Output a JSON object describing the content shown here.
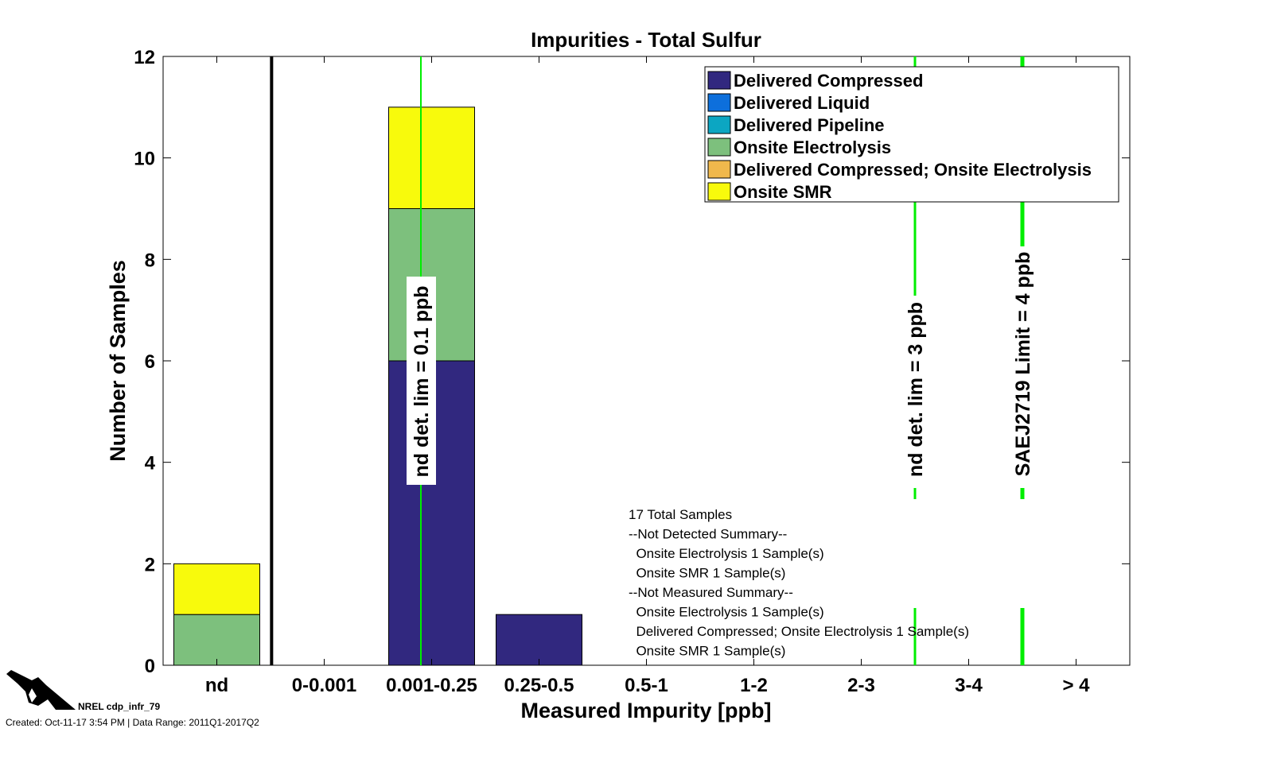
{
  "chart_data": {
    "type": "bar",
    "stacked": true,
    "title": "Impurities - Total Sulfur",
    "xlabel": "Measured Impurity [ppb]",
    "ylabel": "Number of Samples",
    "categories": [
      "nd",
      "0-0.001",
      "0.001-0.25",
      "0.25-0.5",
      "0.5-1",
      "1-2",
      "2-3",
      "3-4",
      "> 4"
    ],
    "ylim": [
      0,
      12
    ],
    "yticks": [
      0,
      2,
      4,
      6,
      8,
      10,
      12
    ],
    "xlim": [
      0.5,
      9.5
    ],
    "grid": false,
    "legend_position": "top-right",
    "series": [
      {
        "name": "Delivered Compressed",
        "color": "#31287f",
        "values": [
          0,
          0,
          6,
          1,
          0,
          0,
          0,
          0,
          0
        ]
      },
      {
        "name": "Delivered Liquid",
        "color": "#0d6fdc",
        "values": [
          0,
          0,
          0,
          0,
          0,
          0,
          0,
          0,
          0
        ]
      },
      {
        "name": "Delivered Pipeline",
        "color": "#0ca6c2",
        "values": [
          0,
          0,
          0,
          0,
          0,
          0,
          0,
          0,
          0
        ]
      },
      {
        "name": "Onsite Electrolysis",
        "color": "#7dc07d",
        "values": [
          1,
          0,
          3,
          0,
          0,
          0,
          0,
          0,
          0
        ]
      },
      {
        "name": "Delivered Compressed; Onsite Electrolysis",
        "color": "#f0b84c",
        "values": [
          0,
          0,
          0,
          0,
          0,
          0,
          0,
          0,
          0
        ]
      },
      {
        "name": "Onsite SMR",
        "color": "#f8fa0c",
        "values": [
          1,
          0,
          2,
          0,
          0,
          0,
          0,
          0,
          0
        ]
      }
    ],
    "separator_line": {
      "x": 1.51,
      "color": "#000000"
    },
    "reference_lines": [
      {
        "x": 2.9,
        "label": "nd det. lim = 0.1 ppb",
        "color": "#00ee00"
      },
      {
        "x": 7.5,
        "label": "nd det. lim = 3 ppb",
        "color": "#00ee00"
      },
      {
        "x": 8.5,
        "label": "SAEJ2719 Limit = 4 ppb",
        "color": "#00ee00"
      }
    ],
    "annotation": [
      "17 Total Samples",
      "--Not Detected Summary--",
      "  Onsite Electrolysis 1 Sample(s)",
      "  Onsite SMR 1 Sample(s)",
      "--Not Measured Summary--",
      "  Onsite Electrolysis 1 Sample(s)",
      "  Delivered Compressed; Onsite Electrolysis 1 Sample(s)",
      "  Onsite SMR 1 Sample(s)"
    ]
  },
  "footer": {
    "id": "NREL cdp_infr_79",
    "created": "Created: Oct-11-17  3:54 PM | Data Range: 2011Q1-2017Q2"
  }
}
